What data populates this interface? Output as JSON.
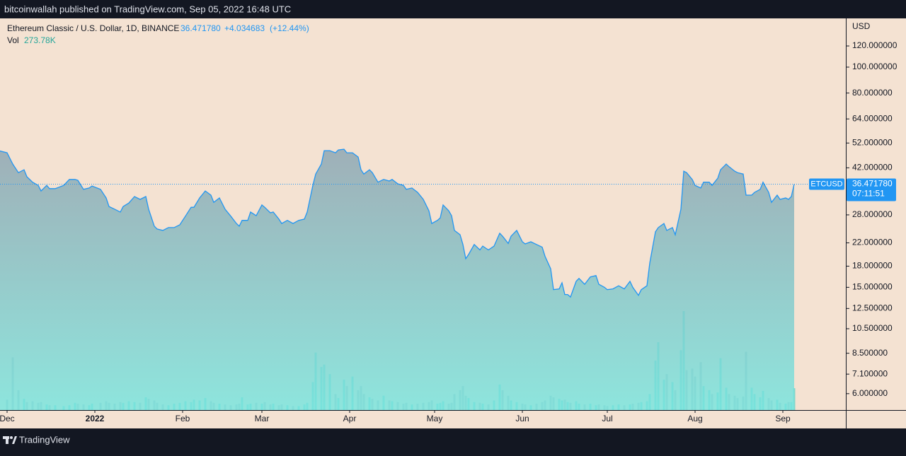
{
  "header": {
    "published": "bitcoinwallah published on TradingView.com, Sep 05, 2022 16:48 UTC"
  },
  "footer": {
    "brand": "TradingView"
  },
  "chart_data": {
    "type": "area",
    "symbol": "Ethereum Classic / U.S. Dollar, 1D, BINANCE",
    "last_label": "36.471780",
    "change_label": "+4.034683",
    "change_pct_label": "(+12.44%)",
    "countdown": "07:11:51",
    "y_unit": "USD",
    "log_scale": true,
    "xlim": [
      -33.5,
      265.25
    ],
    "xticks": [
      {
        "value": -31,
        "label": "Dec"
      },
      {
        "value": 0,
        "label": "2022"
      },
      {
        "value": 31,
        "label": "Feb"
      },
      {
        "value": 59,
        "label": "Mar"
      },
      {
        "value": 90,
        "label": "Apr"
      },
      {
        "value": 120,
        "label": "May"
      },
      {
        "value": 151,
        "label": "Jun"
      },
      {
        "value": 181,
        "label": "Jul"
      },
      {
        "value": 212,
        "label": "Aug"
      },
      {
        "value": 243,
        "label": "Sep"
      }
    ],
    "ylim": [
      5.21,
      152.2
    ],
    "yticks": [
      {
        "value": 120,
        "label": "120.000000"
      },
      {
        "value": 100,
        "label": "100.000000"
      },
      {
        "value": 80,
        "label": "80.000000"
      },
      {
        "value": 64,
        "label": "64.000000"
      },
      {
        "value": 52,
        "label": "52.000000"
      },
      {
        "value": 42,
        "label": "42.000000"
      },
      {
        "value": 28,
        "label": "28.000000"
      },
      {
        "value": 22,
        "label": "22.000000"
      },
      {
        "value": 18,
        "label": "18.000000"
      },
      {
        "value": 15,
        "label": "15.000000"
      },
      {
        "value": 12.5,
        "label": "12.500000"
      },
      {
        "value": 10.5,
        "label": "10.500000"
      },
      {
        "value": 8.5,
        "label": "8.500000"
      },
      {
        "value": 7.1,
        "label": "7.100000"
      },
      {
        "value": 6,
        "label": "6.000000"
      }
    ],
    "x": [
      -34,
      -31,
      -29,
      -27,
      -25,
      -24,
      -22,
      -20,
      -19,
      -17,
      -16,
      -14,
      -11,
      -9,
      -7,
      -6,
      -4,
      -2,
      -1,
      2,
      4,
      5,
      7,
      9,
      10,
      12,
      14,
      16,
      18,
      19,
      21,
      22,
      24,
      26,
      28,
      30,
      32,
      34,
      35,
      37,
      39,
      41,
      42,
      44,
      46,
      48,
      50,
      51,
      52,
      54,
      55,
      57,
      59,
      60,
      62,
      63,
      65,
      66,
      68,
      70,
      72,
      74,
      75,
      77,
      78,
      80,
      81,
      83,
      85,
      86,
      88,
      89,
      91,
      93,
      94,
      95,
      97,
      98,
      100,
      102,
      104,
      105,
      107,
      109,
      110,
      112,
      114,
      116,
      118,
      119,
      121,
      122,
      123,
      125,
      126,
      127,
      129,
      130,
      131,
      132,
      134,
      136,
      137,
      139,
      141,
      143,
      144,
      146,
      147,
      149,
      151,
      152,
      154,
      156,
      158,
      159,
      161,
      162,
      164,
      165,
      166,
      167,
      168,
      170,
      171,
      173,
      175,
      177,
      178,
      180,
      181,
      183,
      185,
      187,
      189,
      190,
      192,
      193,
      195,
      196,
      198,
      199,
      201,
      202,
      204,
      205,
      207,
      208,
      209,
      211,
      212,
      214,
      215,
      217,
      218,
      220,
      221,
      223,
      224,
      226,
      227,
      229,
      230,
      232,
      233,
      235,
      236,
      238,
      239,
      241,
      242,
      244,
      245,
      246,
      247
    ],
    "series": [
      {
        "name": "ETCUSD",
        "color": "#2196f3",
        "values": [
          48.7,
          47.8,
          43.4,
          40.3,
          41.3,
          38.9,
          37.1,
          36.1,
          34.4,
          36.1,
          35.1,
          35.1,
          36.1,
          38.0,
          38.0,
          37.7,
          34.9,
          35.3,
          35.9,
          34.9,
          32.4,
          30.1,
          29.4,
          28.7,
          30.1,
          31.0,
          32.8,
          32.0,
          32.8,
          29.4,
          25.4,
          24.8,
          24.5,
          25.1,
          25.1,
          25.7,
          27.7,
          29.9,
          29.9,
          32.4,
          34.4,
          33.2,
          31.2,
          32.4,
          29.4,
          27.7,
          26.0,
          25.4,
          26.7,
          26.7,
          28.7,
          27.8,
          30.5,
          29.9,
          28.5,
          28.7,
          27.0,
          26.0,
          26.7,
          26.0,
          26.7,
          27.0,
          28.7,
          36.1,
          39.8,
          43.4,
          48.7,
          48.7,
          47.8,
          49.0,
          49.3,
          47.8,
          47.8,
          46.1,
          41.3,
          39.8,
          41.3,
          40.3,
          37.1,
          38.0,
          37.5,
          38.0,
          36.6,
          36.1,
          34.9,
          35.3,
          34.0,
          32.0,
          29.0,
          26.0,
          26.7,
          27.3,
          30.5,
          29.0,
          27.8,
          24.5,
          23.6,
          21.7,
          19.2,
          19.9,
          21.7,
          20.7,
          21.4,
          20.7,
          21.4,
          23.9,
          23.3,
          21.9,
          23.3,
          24.5,
          22.2,
          21.8,
          22.2,
          21.7,
          21.2,
          19.6,
          17.6,
          14.7,
          14.8,
          15.6,
          14.1,
          14.1,
          13.8,
          15.8,
          16.2,
          15.4,
          16.4,
          16.6,
          15.4,
          15.0,
          14.7,
          14.8,
          15.2,
          14.8,
          15.8,
          15.0,
          14.0,
          14.7,
          15.2,
          18.5,
          24.2,
          25.1,
          26.0,
          24.5,
          25.1,
          23.6,
          29.4,
          40.8,
          40.3,
          38.0,
          36.1,
          35.3,
          37.1,
          37.1,
          36.1,
          38.4,
          41.3,
          43.4,
          42.4,
          40.8,
          40.3,
          39.8,
          33.2,
          33.2,
          34.0,
          34.9,
          37.1,
          34.0,
          31.2,
          33.2,
          32.0,
          32.4,
          32.0,
          32.8,
          36.47178
        ]
      }
    ],
    "volume": {
      "name": "Vol",
      "value_label": "273.78K",
      "up_color": "#5fd3c8",
      "down_color": "#a4b2b2",
      "values": [
        100000,
        130000,
        660000,
        250000,
        140000,
        100000,
        110000,
        90000,
        100000,
        70000,
        60000,
        60000,
        50000,
        60000,
        90000,
        80000,
        70000,
        60000,
        80000,
        90000,
        110000,
        90000,
        80000,
        100000,
        90000,
        110000,
        100000,
        90000,
        160000,
        140000,
        120000,
        90000,
        70000,
        60000,
        80000,
        90000,
        110000,
        100000,
        130000,
        120000,
        150000,
        110000,
        90000,
        80000,
        70000,
        60000,
        70000,
        80000,
        160000,
        70000,
        80000,
        90000,
        80000,
        100000,
        70000,
        80000,
        60000,
        70000,
        60000,
        50000,
        50000,
        70000,
        90000,
        350000,
        720000,
        540000,
        570000,
        450000,
        200000,
        150000,
        380000,
        300000,
        420000,
        250000,
        300000,
        200000,
        160000,
        140000,
        120000,
        180000,
        120000,
        110000,
        100000,
        80000,
        90000,
        70000,
        80000,
        90000,
        100000,
        120000,
        80000,
        90000,
        110000,
        80000,
        90000,
        200000,
        250000,
        300000,
        180000,
        150000,
        100000,
        90000,
        80000,
        70000,
        120000,
        320000,
        250000,
        180000,
        120000,
        100000,
        80000,
        70000,
        60000,
        80000,
        100000,
        120000,
        180000,
        160000,
        140000,
        120000,
        130000,
        100000,
        90000,
        110000,
        80000,
        70000,
        80000,
        60000,
        70000,
        60000,
        50000,
        60000,
        70000,
        60000,
        70000,
        80000,
        90000,
        100000,
        110000,
        200000,
        620000,
        850000,
        380000,
        450000,
        350000,
        250000,
        750000,
        1240000,
        500000,
        520000,
        420000,
        600000,
        300000,
        250000,
        200000,
        220000,
        650000,
        280000,
        200000,
        180000,
        150000,
        170000,
        730000,
        280000,
        200000,
        160000,
        240000,
        150000,
        120000,
        130000,
        90000,
        80000,
        100000,
        100000,
        273780
      ]
    }
  }
}
